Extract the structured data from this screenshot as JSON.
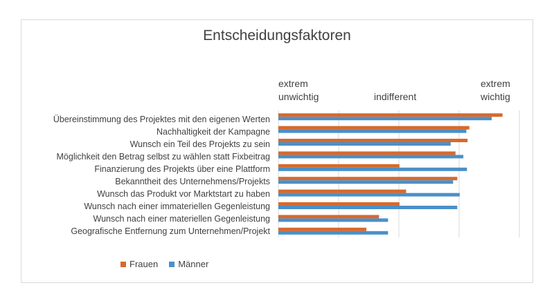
{
  "chart_data": {
    "type": "bar",
    "orientation": "horizontal",
    "title": "Entscheidungsfaktoren",
    "scale_labels": {
      "left": "extrem\nunwichtig",
      "middle": "indifferent",
      "right": "extrem\nwichtig"
    },
    "xlim": [
      1,
      5
    ],
    "grid": true,
    "legend_position": "bottom-left",
    "categories": [
      "Übereinstimmung des Projektes mit den eigenen Werten",
      "Nachhaltigkeit der Kampagne",
      "Wunsch ein Teil des Projekts zu sein",
      "Möglichkeit den Betrag selbst zu wählen statt Fixbeitrag",
      "Finanzierung des Projekts über eine Plattform",
      "Bekanntheit des Unternehmens/Projekts",
      "Wunsch das Produkt vor Marktstart zu haben",
      "Wunsch nach einer immateriellen Gegenleistung",
      "Wunsch nach einer materiellen Gegenleistung",
      "Geografische Entfernung zum Unternehmen/Projekt"
    ],
    "series": [
      {
        "name": "Frauen",
        "color": "#d8692b",
        "values": [
          4.72,
          4.17,
          4.14,
          3.94,
          3.01,
          3.97,
          3.12,
          3.01,
          2.67,
          2.46
        ]
      },
      {
        "name": "Männer",
        "color": "#4a90c8",
        "values": [
          4.54,
          4.12,
          3.86,
          4.07,
          4.13,
          3.9,
          4.01,
          3.97,
          2.82,
          2.82
        ]
      }
    ]
  },
  "legend": {
    "items": [
      {
        "label": "Frauen",
        "color": "#d8692b"
      },
      {
        "label": "Männer",
        "color": "#4a90c8"
      }
    ]
  }
}
